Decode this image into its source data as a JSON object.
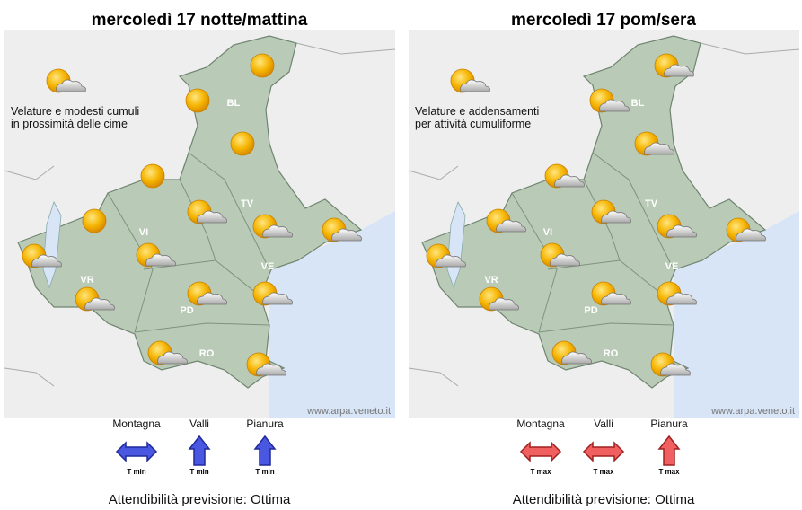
{
  "panels": [
    {
      "title": "mercoledì 17 notte/mattina",
      "note": [
        "Velature e modesti cumuli",
        "in prossimità delle cime"
      ],
      "provinces": [
        "BL",
        "TV",
        "VI",
        "VR",
        "PD",
        "VE",
        "RO"
      ],
      "credit": "www.arpa.veneto.it",
      "trends": [
        {
          "zone": "Montagna",
          "label": "T min"
        },
        {
          "zone": "Valli",
          "label": "T min"
        },
        {
          "zone": "Pianura",
          "label": "T min"
        }
      ],
      "reliability": "Attendibilità previsione: Ottima"
    },
    {
      "title": "mercoledì 17 pom/sera",
      "note": [
        "Velature e addensamenti",
        "per attività cumuliforme"
      ],
      "provinces": [
        "BL",
        "TV",
        "VI",
        "VR",
        "PD",
        "VE",
        "RO"
      ],
      "credit": "www.arpa.veneto.it",
      "trends": [
        {
          "zone": "Montagna",
          "label": "T max"
        },
        {
          "zone": "Valli",
          "label": "T max"
        },
        {
          "zone": "Pianura",
          "label": "T max"
        }
      ],
      "reliability": "Attendibilità previsione: Ottima"
    }
  ]
}
